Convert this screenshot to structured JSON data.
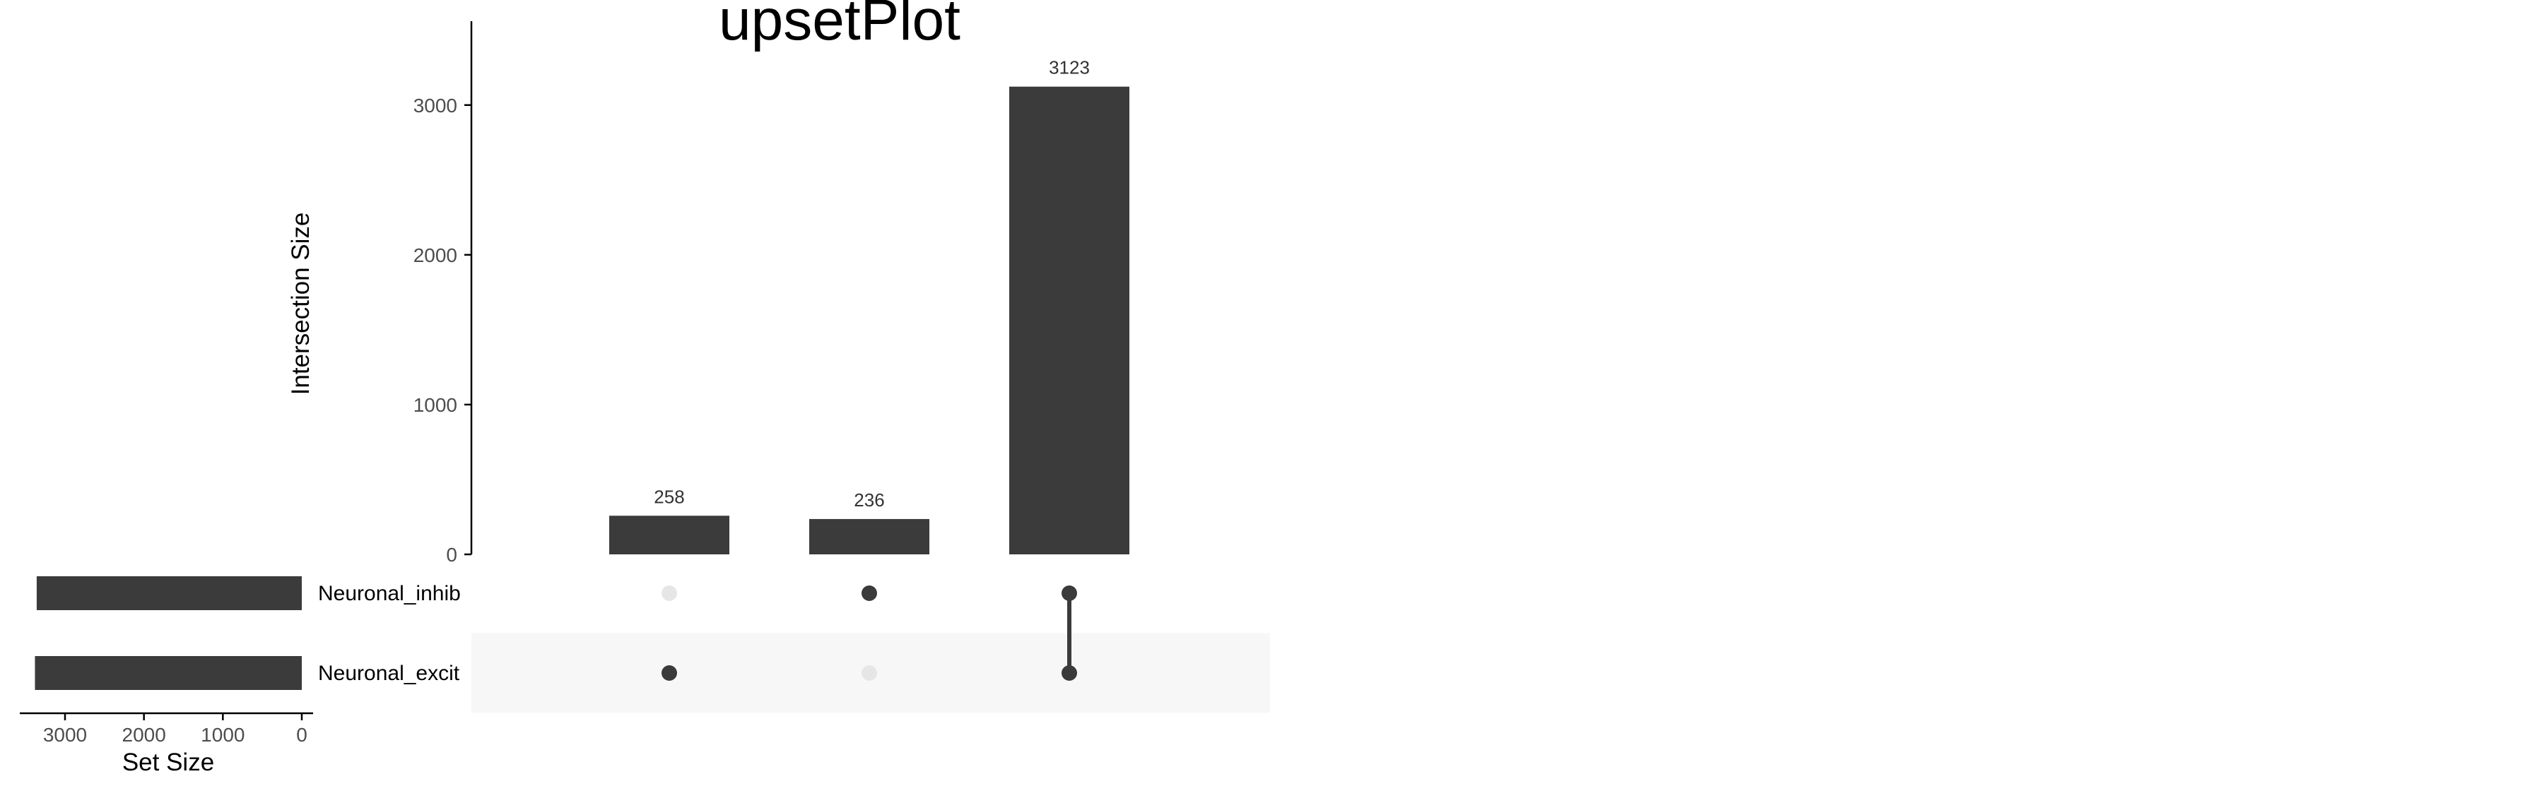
{
  "chart_data": {
    "type": "upset",
    "title": "upsetPlot",
    "intersection_axis_label": "Intersection Size",
    "set_size_axis_label": "Set Size",
    "intersection_ylim": [
      0,
      3560
    ],
    "intersection_ticks": [
      0,
      1000,
      2000,
      3000
    ],
    "set_size_xlim": [
      0,
      3560
    ],
    "set_size_ticks": [
      3000,
      2000,
      1000,
      0
    ],
    "sets": [
      {
        "name": "Neuronal_inhib",
        "size": 3359
      },
      {
        "name": "Neuronal_excit",
        "size": 3381
      }
    ],
    "intersections": [
      {
        "members": [
          "Neuronal_excit"
        ],
        "size": 258,
        "label": "258"
      },
      {
        "members": [
          "Neuronal_inhib"
        ],
        "size": 236,
        "label": "236"
      },
      {
        "members": [
          "Neuronal_inhib",
          "Neuronal_excit"
        ],
        "size": 3123,
        "label": "3123"
      }
    ],
    "colors": {
      "bar": "#3b3b3b",
      "dot_active": "#3b3b3b",
      "dot_inactive": "#e6e6e6",
      "row_stripe": "#f7f7f7",
      "axis": "#000000",
      "tick_label": "#4d4d4d"
    }
  }
}
